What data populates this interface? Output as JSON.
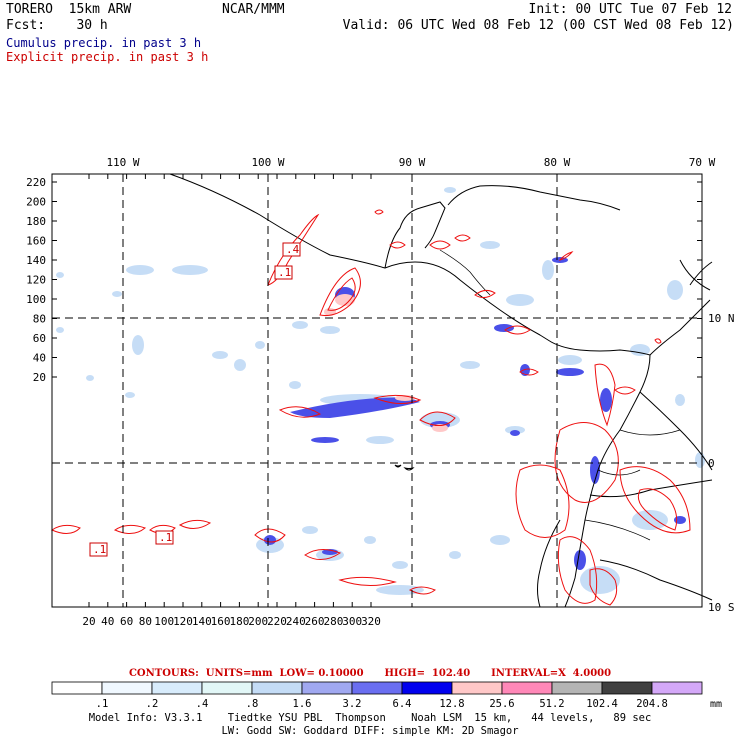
{
  "header": {
    "model": "TORERO  15km ARW",
    "center": "NCAR/MMM",
    "init": "Init: 00 UTC Tue 07 Feb 12",
    "fcst": "Fcst:    30 h",
    "valid": "Valid: 06 UTC Wed 08 Feb 12 (00 CST Wed 08 Feb 12)",
    "line_cumulus": "Cumulus precip. in past 3 h",
    "line_explicit": "Explicit precip. in past 3 h",
    "colors": {
      "cumulus": "#00008b",
      "explicit": "#cc0000"
    }
  },
  "axes": {
    "top_lon_labels": [
      "110 W",
      "100 W",
      "90 W",
      "80 W",
      "70 W"
    ],
    "right_lat_labels": [
      "10 N",
      "0",
      "10 S"
    ],
    "left_ticks": [
      "220",
      "200",
      "180",
      "160",
      "140",
      "120",
      "100",
      "80",
      "60",
      "40",
      "20"
    ],
    "bottom_ticks": [
      "20",
      "40",
      "60",
      "80",
      "100",
      "120",
      "140",
      "160",
      "180",
      "200",
      "220",
      "240",
      "260",
      "280",
      "300",
      "320"
    ]
  },
  "contour_info": "CONTOURS:  UNITS=mm  LOW= 0.10000      HIGH=  102.40      INTERVAL=X  4.0000",
  "colorbar": {
    "unit": "mm",
    "labels": [
      ".1",
      ".2",
      ".4",
      ".8",
      "1.6",
      "3.2",
      "6.4",
      "12.8",
      "25.6",
      "51.2",
      "102.4",
      "204.8"
    ],
    "colors": [
      "#ffffff",
      "#f0f8ff",
      "#d8ecfc",
      "#e2f7f7",
      "#c4dcf6",
      "#a0a8f0",
      "#6a6ef0",
      "#0000ee",
      "#ffc8c8",
      "#ff88b8",
      "#b4b4b4",
      "#404040",
      "#d4a8f8"
    ]
  },
  "footer": {
    "line1": "Model Info: V3.3.1    Tiedtke YSU PBL  Thompson    Noah LSM  15 km,   44 levels,   89 sec",
    "line2": "LW: Godd SW: Goddard DIFF: simple KM: 2D Smagor"
  },
  "box_labels": [
    ".4",
    ".1",
    ".1",
    ".1"
  ]
}
